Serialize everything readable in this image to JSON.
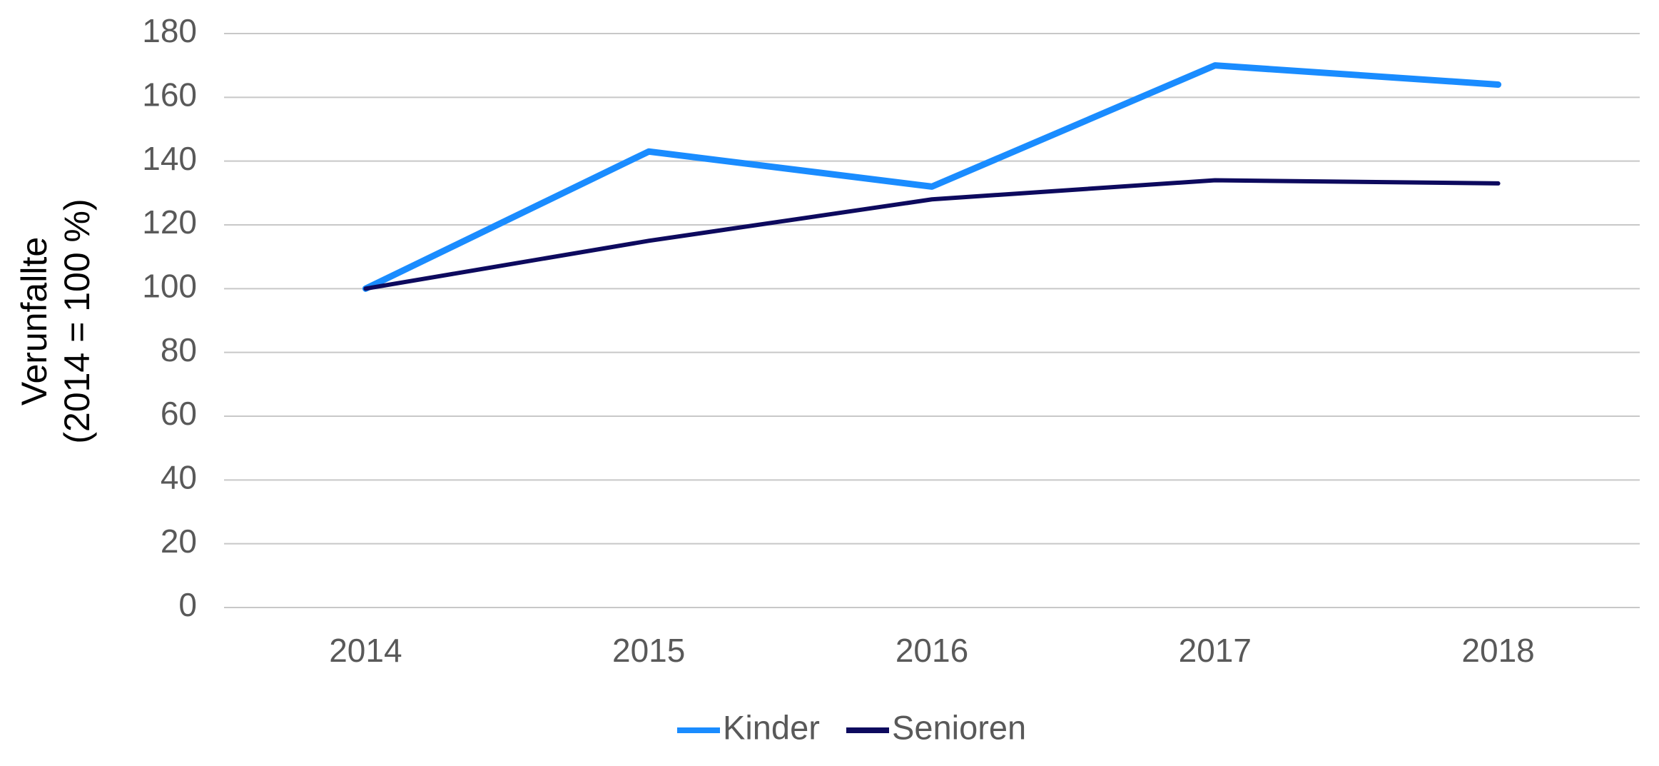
{
  "chart_data": {
    "type": "line",
    "y_label": [
      "Verunfallte",
      "(2014 = 100 %)"
    ],
    "categories": [
      "2014",
      "2015",
      "2016",
      "2017",
      "2018"
    ],
    "series": [
      {
        "name": "Kinder",
        "color": "#1a8cff",
        "values": [
          100,
          143,
          132,
          170,
          164
        ]
      },
      {
        "name": "Senioren",
        "color": "#0d0a5e",
        "values": [
          100,
          115,
          128,
          134,
          133
        ]
      }
    ],
    "ylim": [
      0,
      180
    ],
    "yticks": [
      0,
      20,
      40,
      60,
      80,
      100,
      120,
      140,
      160,
      180
    ],
    "grid": true,
    "legend": "bottom"
  }
}
